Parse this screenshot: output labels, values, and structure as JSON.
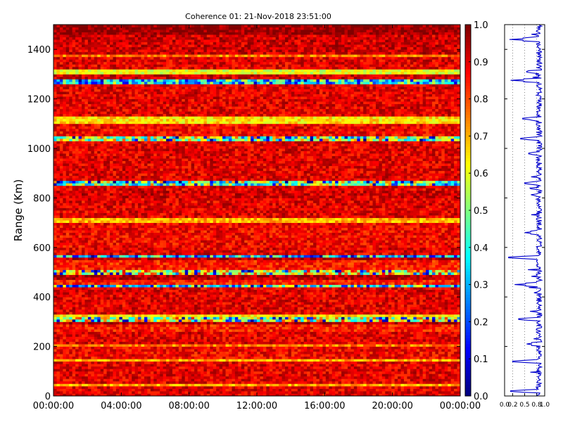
{
  "chart_data": [
    {
      "type": "heatmap",
      "title": "Coherence 01: 21-Nov-2018 23:51:00",
      "xlabel": "",
      "ylabel": "Range (Km)",
      "x_ticks": [
        "00:00:00",
        "04:00:00",
        "08:00:00",
        "12:00:00",
        "16:00:00",
        "20:00:00",
        "00:00:00"
      ],
      "y_ticks": [
        0,
        200,
        400,
        600,
        800,
        1000,
        1200,
        1400
      ],
      "ylim": [
        0,
        1500
      ],
      "colormap": "jet",
      "colorbar": {
        "range": [
          0.0,
          1.0
        ],
        "ticks": [
          "0.0",
          "0.1",
          "0.2",
          "0.3",
          "0.4",
          "0.5",
          "0.6",
          "0.7",
          "0.8",
          "0.9",
          "1.0"
        ]
      },
      "range_bands": [
        {
          "range_km": [
            0,
            40
          ],
          "coherence": 0.9
        },
        {
          "range_km": [
            40,
            50
          ],
          "coherence": 0.7
        },
        {
          "range_km": [
            50,
            140
          ],
          "coherence": 0.9
        },
        {
          "range_km": [
            140,
            150
          ],
          "coherence": 0.7
        },
        {
          "range_km": [
            150,
            205
          ],
          "coherence": 0.88
        },
        {
          "range_km": [
            205,
            215
          ],
          "coherence": 0.75
        },
        {
          "range_km": [
            215,
            260
          ],
          "coherence": 0.9
        },
        {
          "range_km": [
            260,
            290
          ],
          "coherence": 0.85
        },
        {
          "range_km": [
            290,
            305
          ],
          "coherence": 0.95
        },
        {
          "range_km": [
            305,
            320
          ],
          "coherence": 0.5
        },
        {
          "range_km": [
            320,
            330
          ],
          "coherence": 0.65
        },
        {
          "range_km": [
            330,
            440
          ],
          "coherence": 0.9
        },
        {
          "range_km": [
            440,
            450
          ],
          "coherence": 0.3
        },
        {
          "range_km": [
            450,
            475
          ],
          "coherence": 0.85
        },
        {
          "range_km": [
            475,
            492
          ],
          "coherence": 0.95
        },
        {
          "range_km": [
            492,
            508
          ],
          "coherence": 0.55
        },
        {
          "range_km": [
            508,
            550
          ],
          "coherence": 0.85
        },
        {
          "range_km": [
            550,
            560
          ],
          "coherence": 0.95
        },
        {
          "range_km": [
            560,
            568
          ],
          "coherence": 0.2
        },
        {
          "range_km": [
            568,
            600
          ],
          "coherence": 0.9
        },
        {
          "range_km": [
            600,
            700
          ],
          "coherence": 0.88
        },
        {
          "range_km": [
            700,
            720
          ],
          "coherence": 0.7
        },
        {
          "range_km": [
            720,
            800
          ],
          "coherence": 0.9
        },
        {
          "range_km": [
            800,
            830
          ],
          "coherence": 0.92
        },
        {
          "range_km": [
            830,
            850
          ],
          "coherence": 0.9
        },
        {
          "range_km": [
            850,
            868
          ],
          "coherence": 0.4
        },
        {
          "range_km": [
            868,
            1030
          ],
          "coherence": 0.9
        },
        {
          "range_km": [
            1030,
            1050
          ],
          "coherence": 0.45
        },
        {
          "range_km": [
            1050,
            1100
          ],
          "coherence": 0.88
        },
        {
          "range_km": [
            1100,
            1130
          ],
          "coherence": 0.65
        },
        {
          "range_km": [
            1130,
            1265
          ],
          "coherence": 0.9
        },
        {
          "range_km": [
            1265,
            1280
          ],
          "coherence": 0.25
        },
        {
          "range_km": [
            1280,
            1305
          ],
          "coherence": 0.92
        },
        {
          "range_km": [
            1305,
            1325
          ],
          "coherence": 0.6
        },
        {
          "range_km": [
            1325,
            1370
          ],
          "coherence": 0.9
        },
        {
          "range_km": [
            1370,
            1385
          ],
          "coherence": 0.75
        },
        {
          "range_km": [
            1385,
            1460
          ],
          "coherence": 0.92
        },
        {
          "range_km": [
            1460,
            1500
          ],
          "coherence": 0.98
        }
      ]
    },
    {
      "type": "line",
      "xlabel": "",
      "ylabel": "",
      "x_ticks": [
        "0.0",
        "0.2",
        "0.5",
        "0.8",
        "1.0"
      ],
      "xlim": [
        0,
        1
      ],
      "ylim": [
        0,
        1500
      ],
      "grid": true,
      "color": "#0000cc",
      "dips": [
        {
          "range_km": 1440,
          "coherence": 0.12
        },
        {
          "range_km": 1310,
          "coherence": 0.55
        },
        {
          "range_km": 1275,
          "coherence": 0.15
        },
        {
          "range_km": 1120,
          "coherence": 0.45
        },
        {
          "range_km": 1040,
          "coherence": 0.4
        },
        {
          "range_km": 980,
          "coherence": 0.6
        },
        {
          "range_km": 860,
          "coherence": 0.5
        },
        {
          "range_km": 660,
          "coherence": 0.5
        },
        {
          "range_km": 560,
          "coherence": 0.1
        },
        {
          "range_km": 450,
          "coherence": 0.25
        },
        {
          "range_km": 310,
          "coherence": 0.35
        },
        {
          "range_km": 210,
          "coherence": 0.55
        },
        {
          "range_km": 140,
          "coherence": 0.2
        },
        {
          "range_km": 20,
          "coherence": 0.15
        }
      ]
    }
  ]
}
